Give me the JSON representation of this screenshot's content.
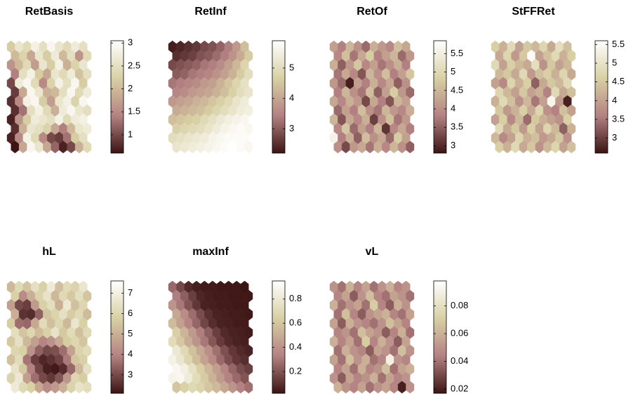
{
  "colormap": [
    "#3c1414",
    "#b48282",
    "#d8d0a4",
    "#ffffff"
  ],
  "chart_data": [
    {
      "type": "hexmap",
      "title": "RetBasis",
      "clim": [
        0.6,
        3.05
      ],
      "cticks": [
        1,
        1.5,
        2,
        2.5,
        3
      ],
      "values": [
        [
          2.2,
          2.6,
          2.4,
          2.8,
          2.5,
          2.9,
          2.6,
          2.4,
          2.7,
          2.5
        ],
        [
          2.0,
          2.3,
          1.8,
          2.6,
          2.2,
          2.7,
          2.0,
          2.5,
          1.6,
          2.4
        ],
        [
          1.6,
          2.0,
          2.4,
          1.7,
          2.6,
          2.2,
          2.8,
          1.9,
          2.3,
          2.6
        ],
        [
          1.4,
          2.5,
          2.8,
          2.2,
          1.8,
          2.6,
          2.4,
          2.7,
          2.1,
          2.5
        ],
        [
          1.0,
          2.7,
          2.9,
          2.4,
          1.5,
          2.3,
          2.8,
          2.5,
          2.9,
          2.2
        ],
        [
          0.9,
          1.8,
          2.9,
          2.6,
          1.9,
          2.0,
          2.5,
          2.9,
          2.4,
          2.7
        ],
        [
          0.8,
          1.5,
          2.8,
          2.9,
          2.2,
          1.7,
          2.6,
          2.8,
          2.3,
          2.9
        ],
        [
          0.8,
          1.3,
          2.5,
          2.8,
          2.4,
          1.9,
          2.7,
          2.9,
          2.6,
          2.5
        ],
        [
          0.7,
          1.6,
          2.2,
          2.7,
          2.6,
          2.5,
          2.8,
          2.4,
          2.7,
          2.8
        ],
        [
          0.8,
          1.9,
          2.6,
          2.5,
          2.3,
          1.8,
          1.4,
          2.0,
          2.6,
          2.7
        ],
        [
          0.7,
          1.5,
          2.8,
          2.4,
          1.5,
          1.0,
          0.9,
          1.3,
          2.2,
          2.5
        ],
        [
          0.6,
          1.8,
          2.9,
          2.6,
          1.8,
          1.2,
          0.7,
          1.0,
          1.9,
          2.4
        ]
      ]
    },
    {
      "type": "hexmap",
      "title": "RetInf",
      "clim": [
        2.2,
        5.9
      ],
      "cticks": [
        3,
        4,
        5
      ],
      "values": [
        [
          2.3,
          2.4,
          2.5,
          2.6,
          2.8,
          2.9,
          3.1,
          3.4,
          3.8,
          4.4
        ],
        [
          2.5,
          2.6,
          2.7,
          2.9,
          3.0,
          3.2,
          3.4,
          3.7,
          4.1,
          4.6
        ],
        [
          2.8,
          2.9,
          3.0,
          3.1,
          3.3,
          3.4,
          3.6,
          3.9,
          4.3,
          4.8
        ],
        [
          3.0,
          3.1,
          3.3,
          3.4,
          3.5,
          3.7,
          3.9,
          4.2,
          4.6,
          5.0
        ],
        [
          3.3,
          3.4,
          3.5,
          3.6,
          3.8,
          3.9,
          4.2,
          4.5,
          4.8,
          5.1
        ],
        [
          3.5,
          3.6,
          3.8,
          3.9,
          4.0,
          4.2,
          4.4,
          4.7,
          5.0,
          5.2
        ],
        [
          3.8,
          3.9,
          4.0,
          4.2,
          4.3,
          4.5,
          4.7,
          4.9,
          5.2,
          5.4
        ],
        [
          4.1,
          4.2,
          4.3,
          4.4,
          4.6,
          4.8,
          5.0,
          5.2,
          5.4,
          5.5
        ],
        [
          4.4,
          4.5,
          4.6,
          4.7,
          4.9,
          5.1,
          5.3,
          5.5,
          5.6,
          5.7
        ],
        [
          4.7,
          4.8,
          4.9,
          5.0,
          5.2,
          5.4,
          5.6,
          5.7,
          5.8,
          5.7
        ],
        [
          5.0,
          5.1,
          5.2,
          5.3,
          5.4,
          5.6,
          5.7,
          5.8,
          5.8,
          5.8
        ],
        [
          5.2,
          5.3,
          5.4,
          5.5,
          5.6,
          5.7,
          5.8,
          5.9,
          5.8,
          5.7
        ]
      ]
    },
    {
      "type": "hexmap",
      "title": "RetOf",
      "clim": [
        2.8,
        5.85
      ],
      "cticks": [
        3,
        3.5,
        4,
        4.5,
        5,
        5.5
      ],
      "values": [
        [
          4.2,
          3.8,
          4.5,
          4.0,
          3.6,
          4.4,
          4.1,
          3.9,
          4.6,
          4.3
        ],
        [
          3.9,
          4.6,
          3.7,
          4.3,
          4.8,
          3.8,
          4.2,
          4.5,
          3.6,
          4.1
        ],
        [
          4.4,
          3.5,
          4.1,
          4.7,
          3.9,
          4.2,
          3.7,
          4.0,
          4.4,
          3.8
        ],
        [
          3.7,
          4.3,
          3.9,
          3.4,
          4.5,
          4.0,
          4.6,
          3.8,
          4.2,
          4.7
        ],
        [
          4.1,
          3.6,
          2.9,
          4.2,
          3.8,
          4.4,
          3.9,
          4.3,
          3.5,
          4.0
        ],
        [
          3.8,
          4.5,
          4.0,
          3.7,
          4.6,
          3.5,
          4.2,
          4.8,
          4.1,
          3.6
        ],
        [
          4.3,
          3.9,
          4.4,
          4.1,
          3.3,
          4.3,
          3.8,
          3.4,
          4.5,
          4.2
        ],
        [
          3.6,
          4.2,
          3.8,
          4.6,
          4.0,
          3.7,
          4.5,
          4.1,
          3.9,
          4.4
        ],
        [
          4.5,
          3.4,
          4.3,
          3.9,
          4.4,
          3.2,
          4.0,
          4.6,
          3.7,
          4.1
        ],
        [
          3.9,
          4.7,
          3.6,
          4.2,
          3.8,
          4.5,
          3.1,
          3.9,
          4.3,
          3.8
        ],
        [
          5.6,
          3.8,
          4.4,
          3.5,
          4.6,
          4.0,
          4.3,
          3.6,
          4.8,
          4.2
        ],
        [
          4.0,
          3.3,
          4.1,
          4.3,
          3.7,
          4.4,
          3.9,
          4.5,
          4.0,
          3.5
        ]
      ]
    },
    {
      "type": "hexmap",
      "title": "StFFRet",
      "clim": [
        2.6,
        5.6
      ],
      "cticks": [
        3,
        3.5,
        4,
        4.5,
        5,
        5.5
      ],
      "values": [
        [
          4.6,
          4.2,
          4.8,
          4.0,
          4.5,
          4.3,
          4.7,
          4.1,
          4.9,
          4.4
        ],
        [
          4.1,
          4.7,
          3.9,
          4.5,
          5.5,
          4.0,
          4.4,
          4.8,
          4.2,
          4.6
        ],
        [
          4.8,
          4.0,
          4.6,
          4.3,
          4.1,
          4.9,
          3.8,
          4.5,
          4.0,
          4.3
        ],
        [
          4.3,
          4.5,
          4.1,
          4.8,
          3.9,
          4.4,
          4.6,
          4.2,
          4.7,
          4.1
        ],
        [
          4.0,
          3.7,
          4.7,
          4.2,
          4.6,
          3.3,
          4.1,
          4.5,
          4.3,
          4.8
        ],
        [
          4.7,
          4.3,
          4.0,
          4.5,
          4.0,
          4.2,
          3.6,
          4.8,
          4.1,
          4.4
        ],
        [
          4.2,
          4.8,
          4.4,
          3.8,
          4.3,
          3.5,
          4.0,
          5.4,
          3.9,
          2.7
        ],
        [
          4.5,
          3.9,
          4.2,
          4.6,
          4.1,
          4.7,
          3.8,
          3.6,
          4.4,
          4.0
        ],
        [
          4.0,
          4.6,
          3.7,
          4.3,
          3.4,
          4.5,
          4.2,
          4.0,
          3.8,
          4.6
        ],
        [
          4.8,
          4.1,
          4.5,
          3.9,
          4.6,
          4.0,
          4.7,
          4.3,
          3.3,
          4.2
        ],
        [
          4.3,
          3.7,
          4.0,
          4.7,
          4.2,
          4.4,
          3.9,
          4.1,
          4.5,
          3.8
        ],
        [
          4.6,
          4.2,
          4.8,
          4.1,
          4.5,
          3.8,
          4.3,
          4.7,
          4.0,
          4.4
        ]
      ]
    },
    {
      "type": "hexmap",
      "title": "hL",
      "clim": [
        2.1,
        7.6
      ],
      "cticks": [
        3,
        4,
        5,
        6,
        7
      ],
      "values": [
        [
          5.2,
          6.1,
          5.5,
          6.4,
          5.8,
          6.8,
          5.4,
          6.2,
          5.9,
          6.6
        ],
        [
          5.8,
          4.2,
          5.0,
          5.9,
          6.5,
          5.2,
          6.1,
          5.6,
          6.3,
          5.5
        ],
        [
          4.6,
          3.0,
          2.8,
          4.5,
          5.8,
          6.3,
          5.0,
          6.7,
          5.4,
          6.0
        ],
        [
          5.0,
          2.6,
          2.5,
          3.4,
          5.5,
          5.9,
          6.4,
          5.7,
          6.1,
          5.3
        ],
        [
          5.7,
          3.6,
          3.5,
          4.8,
          6.2,
          5.4,
          6.0,
          5.2,
          6.6,
          5.8
        ],
        [
          6.3,
          5.5,
          6.0,
          5.3,
          5.8,
          6.5,
          5.6,
          6.2,
          5.4,
          6.1
        ],
        [
          5.6,
          6.4,
          5.2,
          4.6,
          4.0,
          4.3,
          4.9,
          5.7,
          6.0,
          5.5
        ],
        [
          6.0,
          5.8,
          4.3,
          3.4,
          3.0,
          3.1,
          3.6,
          4.7,
          5.9,
          6.2
        ],
        [
          5.4,
          6.2,
          3.7,
          2.8,
          2.4,
          2.6,
          2.9,
          3.8,
          5.5,
          5.8
        ],
        [
          6.5,
          5.6,
          3.9,
          2.9,
          2.3,
          2.2,
          2.5,
          3.5,
          5.2,
          6.4
        ],
        [
          5.9,
          6.7,
          4.6,
          3.6,
          3.0,
          2.7,
          3.2,
          4.4,
          6.0,
          5.7
        ],
        [
          6.8,
          6.1,
          5.8,
          4.8,
          4.2,
          4.5,
          5.0,
          5.9,
          6.5,
          6.3
        ]
      ]
    },
    {
      "type": "hexmap",
      "title": "maxInf",
      "clim": [
        0.02,
        0.95
      ],
      "cticks": [
        0.2,
        0.4,
        0.6,
        0.8
      ],
      "values": [
        [
          0.26,
          0.17,
          0.08,
          0.05,
          0.04,
          0.04,
          0.03,
          0.03,
          0.03,
          0.02
        ],
        [
          0.32,
          0.23,
          0.14,
          0.07,
          0.05,
          0.04,
          0.04,
          0.03,
          0.03,
          0.03
        ],
        [
          0.4,
          0.3,
          0.2,
          0.12,
          0.06,
          0.05,
          0.04,
          0.04,
          0.03,
          0.03
        ],
        [
          0.48,
          0.37,
          0.27,
          0.18,
          0.1,
          0.06,
          0.05,
          0.04,
          0.04,
          0.03
        ],
        [
          0.56,
          0.45,
          0.34,
          0.25,
          0.16,
          0.09,
          0.06,
          0.05,
          0.04,
          0.04
        ],
        [
          0.64,
          0.53,
          0.42,
          0.32,
          0.23,
          0.14,
          0.08,
          0.06,
          0.05,
          0.04
        ],
        [
          0.72,
          0.61,
          0.5,
          0.4,
          0.3,
          0.21,
          0.13,
          0.08,
          0.06,
          0.05
        ],
        [
          0.8,
          0.7,
          0.58,
          0.48,
          0.38,
          0.28,
          0.19,
          0.12,
          0.08,
          0.06
        ],
        [
          0.86,
          0.78,
          0.67,
          0.56,
          0.46,
          0.36,
          0.26,
          0.18,
          0.12,
          0.09
        ],
        [
          0.9,
          0.85,
          0.75,
          0.64,
          0.54,
          0.44,
          0.34,
          0.25,
          0.18,
          0.14
        ],
        [
          0.88,
          0.9,
          0.82,
          0.72,
          0.62,
          0.52,
          0.42,
          0.33,
          0.26,
          0.2
        ],
        [
          0.6,
          0.65,
          0.7,
          0.66,
          0.6,
          0.55,
          0.48,
          0.4,
          0.33,
          0.28
        ]
      ]
    },
    {
      "type": "hexmap",
      "title": "vL",
      "clim": [
        0.017,
        0.098
      ],
      "cticks": [
        0.02,
        0.04,
        0.06,
        0.08
      ],
      "values": [
        [
          0.05,
          0.04,
          0.06,
          0.045,
          0.055,
          0.04,
          0.05,
          0.06,
          0.045,
          0.05
        ],
        [
          0.045,
          0.055,
          0.035,
          0.05,
          0.065,
          0.045,
          0.04,
          0.055,
          0.05,
          0.04
        ],
        [
          0.06,
          0.04,
          0.05,
          0.055,
          0.04,
          0.07,
          0.045,
          0.035,
          0.06,
          0.05
        ],
        [
          0.04,
          0.065,
          0.045,
          0.035,
          0.05,
          0.055,
          0.06,
          0.045,
          0.04,
          0.055
        ],
        [
          0.055,
          0.035,
          0.06,
          0.05,
          0.045,
          0.04,
          0.05,
          0.065,
          0.055,
          0.045
        ],
        [
          0.045,
          0.05,
          0.04,
          0.065,
          0.055,
          0.05,
          0.035,
          0.045,
          0.06,
          0.04
        ],
        [
          0.06,
          0.045,
          0.055,
          0.04,
          0.07,
          0.045,
          0.06,
          0.05,
          0.035,
          0.055
        ],
        [
          0.04,
          0.06,
          0.05,
          0.045,
          0.035,
          0.055,
          0.05,
          0.04,
          0.065,
          0.05
        ],
        [
          0.055,
          0.04,
          0.065,
          0.05,
          0.06,
          0.04,
          0.045,
          0.09,
          0.05,
          0.045
        ],
        [
          0.045,
          0.055,
          0.04,
          0.06,
          0.045,
          0.05,
          0.065,
          0.04,
          0.055,
          0.06
        ],
        [
          0.05,
          0.035,
          0.055,
          0.045,
          0.05,
          0.06,
          0.04,
          0.055,
          0.045,
          0.05
        ],
        [
          0.06,
          0.05,
          0.045,
          0.055,
          0.04,
          0.05,
          0.055,
          0.045,
          0.02,
          0.05
        ]
      ]
    }
  ]
}
